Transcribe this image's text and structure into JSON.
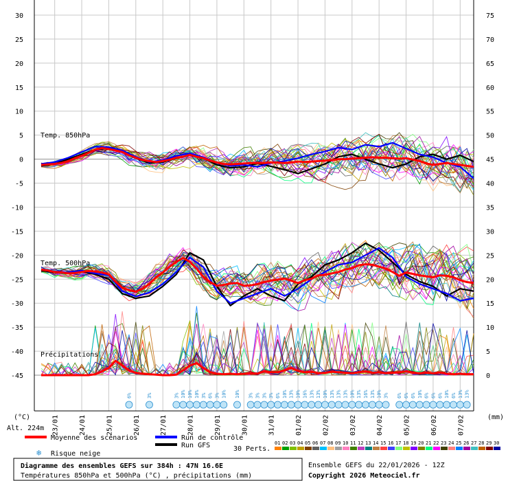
{
  "chart_data": {
    "type": "line",
    "title": "Diagramme des ensembles GEFS sur 384h : 47N 16.6E",
    "subtitle": "Températures 850hPa et 500hPa (°C) , précipitations (mm)",
    "run_info": "Ensemble GEFS du 22/01/2026 - 12Z",
    "copyright": "Copyright 2026 Meteociel.fr",
    "altitude": "Alt. 224m",
    "ylabel_left": "(°C)",
    "ylabel_right": "(mm)",
    "ylim_left": [
      -45,
      30
    ],
    "ylim_right": [
      0,
      75
    ],
    "yticks_left": [
      "30",
      "25",
      "20",
      "15",
      "10",
      "5",
      "0",
      "-5",
      "-10",
      "-15",
      "-20",
      "-25",
      "-30",
      "-35",
      "-40",
      "-45"
    ],
    "yticks_right": [
      "75",
      "70",
      "65",
      "60",
      "55",
      "50",
      "45",
      "40",
      "35",
      "30",
      "25",
      "20",
      "15",
      "10",
      "5",
      "0"
    ],
    "dates": [
      "23/01",
      "24/01",
      "25/01",
      "26/01",
      "27/01",
      "28/01",
      "29/01",
      "30/01",
      "31/01",
      "01/02",
      "02/02",
      "03/02",
      "04/02",
      "05/02",
      "06/02",
      "07/02"
    ],
    "panel_labels": {
      "t850": "Temp. 850hPa",
      "t500": "Temp. 500hPa",
      "precip": "Précipitations"
    },
    "legend": {
      "mean": "Moyenne des scénarios",
      "control": "Run de contrôle",
      "gfs": "Run GFS",
      "snow": "Risque neige",
      "perts_label": "30 Perts.",
      "pert_numbers": [
        "01",
        "02",
        "03",
        "04",
        "05",
        "06",
        "07",
        "08",
        "09",
        "10",
        "11",
        "12",
        "13",
        "14",
        "15",
        "16",
        "17",
        "18",
        "19",
        "20",
        "21",
        "22",
        "23",
        "24",
        "25",
        "26",
        "27",
        "28",
        "29",
        "30"
      ],
      "pert_colors": [
        "#ff8000",
        "#00a000",
        "#80c000",
        "#c0a000",
        "#804000",
        "#606060",
        "#00c0ff",
        "#ffc080",
        "#a0a0a0",
        "#ff80c0",
        "#408000",
        "#c040c0",
        "#008080",
        "#c08040",
        "#ff4040",
        "#4040ff",
        "#80ff80",
        "#c0c000",
        "#8000ff",
        "#808000",
        "#00ff80",
        "#ff00ff",
        "#404000",
        "#ff8080",
        "#0080ff",
        "#a000a0",
        "#40c0c0",
        "#c06000",
        "#800000",
        "#0000a0"
      ]
    },
    "colors": {
      "mean": "#ff0000",
      "control": "#0000ff",
      "gfs": "#000000",
      "snow": "#2a8fd0",
      "grid": "#c0c0c0"
    },
    "series": [
      {
        "name": "Moyenne des scénarios",
        "level": "850hPa",
        "x": [
          0,
          6,
          12,
          18,
          24,
          30,
          36,
          42,
          48,
          54,
          60,
          66,
          72,
          78,
          84,
          90,
          96,
          102,
          108,
          114,
          120,
          126,
          132,
          138,
          144,
          150,
          156,
          162,
          168,
          174,
          180,
          186,
          192,
          198,
          204,
          210,
          216,
          222,
          228,
          234,
          240,
          246,
          252,
          258,
          264,
          270,
          276,
          282,
          288,
          294,
          300,
          306,
          312,
          318,
          324,
          330,
          336,
          342,
          348,
          354,
          360,
          366,
          372,
          378,
          384
        ],
        "y": [
          -1.2,
          -1.1,
          -1.0,
          -0.8,
          -0.4,
          0.2,
          0.7,
          1.3,
          2.0,
          2.3,
          2.1,
          1.8,
          1.5,
          0.8,
          0.3,
          -0.2,
          -0.4,
          -0.6,
          -0.4,
          -0.1,
          0.3,
          0.5,
          0.9,
          0.5,
          0.2,
          -0.3,
          -0.7,
          -1.0,
          -1.1,
          -1.0,
          -0.9,
          -0.8,
          -0.8,
          -0.8,
          -0.7,
          -0.7,
          -0.8,
          -0.7,
          -0.5,
          -0.6,
          -0.5,
          -0.4,
          -0.3,
          -0.2,
          0.0,
          0.0,
          0.1,
          0.2,
          0.3,
          0.4,
          0.3,
          0.3,
          0.2,
          0.1,
          0.2,
          -0.1,
          -0.4,
          -0.9,
          -1.2,
          -1.0,
          -0.8,
          -1.0,
          -1.2,
          -1.4,
          -1.6
        ]
      },
      {
        "name": "Run de contrôle",
        "level": "850hPa",
        "x": [
          0,
          12,
          24,
          36,
          48,
          60,
          72,
          84,
          96,
          108,
          120,
          132,
          144,
          156,
          168,
          180,
          192,
          204,
          216,
          228,
          240,
          252,
          264,
          276,
          288,
          300,
          312,
          324,
          336,
          348,
          360,
          372,
          384
        ],
        "y": [
          -1.0,
          -0.6,
          0.3,
          1.5,
          2.6,
          2.5,
          1.8,
          0.5,
          -0.6,
          -0.2,
          0.7,
          1.2,
          0.4,
          -0.8,
          -1.4,
          -1.2,
          -1.6,
          -0.8,
          -0.4,
          0.2,
          1.0,
          1.6,
          2.4,
          2.0,
          3.0,
          2.6,
          3.4,
          2.2,
          1.0,
          0.4,
          -0.8,
          -1.6,
          -4.0
        ]
      },
      {
        "name": "Run GFS",
        "level": "850hPa",
        "x": [
          0,
          12,
          24,
          36,
          48,
          60,
          72,
          84,
          96,
          108,
          120,
          132,
          144,
          156,
          168,
          180,
          192,
          204,
          216,
          228,
          240,
          252,
          264,
          276,
          288,
          300,
          312,
          324,
          336,
          348,
          360,
          372,
          384
        ],
        "y": [
          -1.4,
          -1.0,
          0.0,
          1.0,
          2.0,
          2.2,
          1.6,
          0.2,
          -0.8,
          -0.6,
          0.2,
          0.9,
          0.2,
          -1.2,
          -1.8,
          -1.6,
          -0.9,
          -1.5,
          -2.2,
          -3.0,
          -2.0,
          -1.0,
          0.5,
          1.0,
          0.0,
          -1.0,
          -1.8,
          -1.0,
          0.5,
          1.0,
          0.0,
          0.8,
          -0.5
        ]
      },
      {
        "name": "Moyenne des scénarios",
        "level": "500hPa",
        "x": [
          0,
          6,
          12,
          18,
          24,
          30,
          36,
          42,
          48,
          54,
          60,
          66,
          72,
          78,
          84,
          90,
          96,
          102,
          108,
          114,
          120,
          126,
          132,
          138,
          144,
          150,
          156,
          162,
          168,
          174,
          180,
          186,
          192,
          198,
          204,
          210,
          216,
          222,
          228,
          234,
          240,
          246,
          252,
          258,
          264,
          270,
          276,
          282,
          288,
          294,
          300,
          306,
          312,
          318,
          324,
          330,
          336,
          342,
          348,
          354,
          360,
          366,
          372,
          378,
          384
        ],
        "y": [
          -23.0,
          -23.2,
          -23.5,
          -23.6,
          -23.8,
          -23.7,
          -23.5,
          -23.3,
          -23.4,
          -23.6,
          -24.0,
          -25.5,
          -26.8,
          -27.3,
          -27.6,
          -27.0,
          -26.0,
          -24.6,
          -23.6,
          -22.4,
          -21.4,
          -20.6,
          -21.4,
          -22.8,
          -24.5,
          -25.6,
          -26.4,
          -26.2,
          -25.9,
          -25.8,
          -26.4,
          -26.3,
          -26.0,
          -25.6,
          -25.3,
          -25.1,
          -24.9,
          -25.3,
          -25.8,
          -25.2,
          -24.9,
          -24.2,
          -24.1,
          -23.8,
          -23.5,
          -23.0,
          -22.7,
          -22.1,
          -21.9,
          -22.0,
          -22.4,
          -22.8,
          -23.5,
          -24.3,
          -23.6,
          -23.9,
          -24.2,
          -24.4,
          -24.6,
          -24.2,
          -24.3,
          -24.6,
          -25.2,
          -25.6,
          -25.8
        ]
      },
      {
        "name": "Run de contrôle",
        "level": "500hPa",
        "x": [
          0,
          12,
          24,
          36,
          48,
          60,
          72,
          84,
          96,
          108,
          120,
          132,
          144,
          156,
          168,
          180,
          192,
          204,
          216,
          228,
          240,
          252,
          264,
          276,
          288,
          300,
          312,
          324,
          336,
          348,
          360,
          372,
          384
        ],
        "y": [
          -23.0,
          -23.4,
          -23.6,
          -23.2,
          -23.8,
          -24.2,
          -27.5,
          -28.6,
          -27.8,
          -26.0,
          -23.5,
          -20.5,
          -22.5,
          -27.5,
          -30.0,
          -29.0,
          -28.0,
          -27.0,
          -28.5,
          -27.0,
          -25.0,
          -23.5,
          -22.0,
          -21.5,
          -20.0,
          -18.5,
          -20.5,
          -24.5,
          -26.0,
          -27.0,
          -28.0,
          -29.5,
          -29.0
        ]
      },
      {
        "name": "Run GFS",
        "level": "500hPa",
        "x": [
          0,
          12,
          24,
          36,
          48,
          60,
          72,
          84,
          96,
          108,
          120,
          132,
          144,
          156,
          168,
          180,
          192,
          204,
          216,
          228,
          240,
          252,
          264,
          276,
          288,
          300,
          312,
          324,
          336,
          348,
          360,
          372,
          384
        ],
        "y": [
          -23.2,
          -23.6,
          -23.8,
          -23.4,
          -24.0,
          -25.0,
          -28.0,
          -29.0,
          -28.5,
          -26.5,
          -24.0,
          -19.5,
          -21.0,
          -26.5,
          -30.5,
          -28.5,
          -27.0,
          -28.5,
          -29.5,
          -26.0,
          -24.5,
          -22.0,
          -21.0,
          -19.5,
          -17.5,
          -19.0,
          -21.5,
          -24.0,
          -25.5,
          -26.5,
          -28.5,
          -27.0,
          -27.5
        ]
      },
      {
        "name": "Moyenne des scénarios",
        "level": "precip",
        "x": [
          0,
          6,
          12,
          18,
          24,
          30,
          36,
          42,
          48,
          54,
          60,
          66,
          72,
          78,
          84,
          90,
          96,
          102,
          108,
          114,
          120,
          126,
          132,
          138,
          144,
          150,
          156,
          162,
          168,
          174,
          180,
          186,
          192,
          198,
          204,
          210,
          216,
          222,
          228,
          234,
          240,
          246,
          252,
          258,
          264,
          270,
          276,
          282,
          288,
          294,
          300,
          306,
          312,
          318,
          324,
          330,
          336,
          342,
          348,
          354,
          360,
          366,
          372,
          378,
          384
        ],
        "y": [
          0,
          0,
          0,
          0,
          0,
          0,
          0,
          0,
          0.2,
          0.8,
          1.5,
          3.0,
          2.0,
          1.0,
          0.5,
          0.3,
          0.2,
          0.1,
          0,
          0,
          0.1,
          1.0,
          2.0,
          2.5,
          1.5,
          0.6,
          0.3,
          0.2,
          0.3,
          0.2,
          0.3,
          0.4,
          0.3,
          0.8,
          0.6,
          0.6,
          1.0,
          1.5,
          0.9,
          0.6,
          0.7,
          0.4,
          0.5,
          0.7,
          0.6,
          0.5,
          0.4,
          0.6,
          0.8,
          0.5,
          0.6,
          0.4,
          0.5,
          0.6,
          0.8,
          0.5,
          0.4,
          0.5,
          0.4,
          0.6,
          0.3,
          0.2,
          0.3,
          0.2,
          0.2
        ]
      }
    ],
    "snow_risk": {
      "labels": [
        "6%",
        "3%",
        "3%",
        "10%",
        "10%",
        "10%",
        "3%",
        "6%",
        "3%",
        "10%",
        "10%",
        "3%",
        "3%",
        "3%",
        "3%",
        "6%",
        "10%",
        "13%",
        "10%",
        "16%",
        "13%",
        "13%",
        "10%",
        "13%",
        "13%",
        "13%",
        "10%",
        "13%",
        "16%",
        "13%",
        "10%",
        "3%",
        "6%",
        "6%",
        "6%",
        "10%",
        "6%",
        "6%",
        "6%",
        "10%",
        "6%",
        "13%",
        "13%"
      ]
    }
  }
}
